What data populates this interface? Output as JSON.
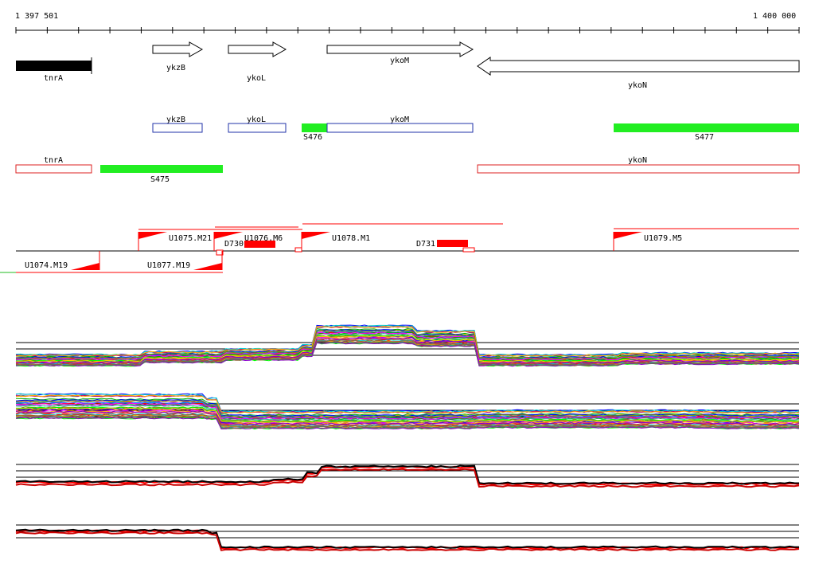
{
  "ruler": {
    "start_label": "1 397 501",
    "end_label": "1 400 000"
  },
  "genes": [
    {
      "id": "tnrA",
      "label": "tnrA",
      "kind": "block"
    },
    {
      "id": "ykzB",
      "label": "ykzB",
      "kind": "arrow-right"
    },
    {
      "id": "ykoL",
      "label": "ykoL",
      "kind": "arrow-right"
    },
    {
      "id": "ykoM",
      "label": "ykoM",
      "kind": "arrow-right"
    },
    {
      "id": "ykoN",
      "label": "ykoN",
      "kind": "arrow-left"
    }
  ],
  "track_plus": {
    "genes": [
      "ykzB",
      "ykoL",
      "ykoM"
    ],
    "segments": [
      "S476",
      "S477"
    ]
  },
  "track_minus": {
    "genes": [
      "tnrA",
      "ykoN"
    ],
    "segments": [
      "S475"
    ]
  },
  "upshifts": [
    "U1075.M21",
    "U1076.M6",
    "U1078.M1",
    "U1079.M5",
    "U1074.M19",
    "U1077.M19"
  ],
  "downshifts": [
    "D730",
    "D731"
  ],
  "colors": {
    "gene_plus": "#2233aa",
    "gene_minus": "#dd2222",
    "segment": "#22ee22",
    "shift_red": "#ff0000",
    "block": "#000000"
  }
}
